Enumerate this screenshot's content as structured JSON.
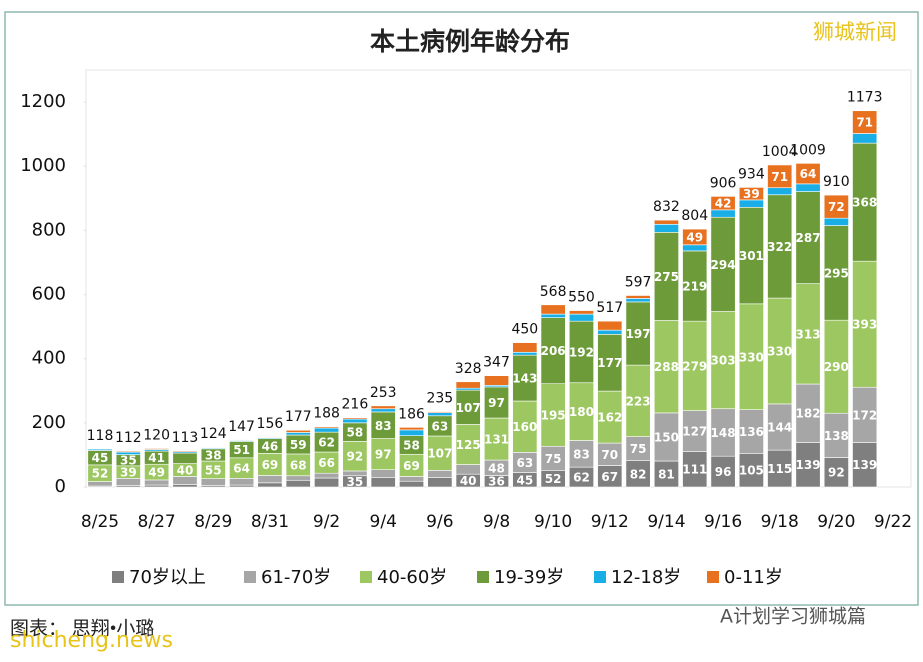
{
  "chart_data": {
    "type": "stacked_bar",
    "title": "本土病例年龄分布",
    "categories": [
      "8/25",
      null,
      "8/27",
      null,
      "8/29",
      null,
      "8/31",
      null,
      "9/2",
      null,
      "9/4",
      null,
      "9/6",
      null,
      "9/8",
      null,
      "9/10",
      null,
      "9/12",
      null,
      "9/14",
      null,
      "9/16",
      null,
      "9/18",
      null,
      "9/20",
      null,
      "9/22"
    ],
    "series": [
      {
        "name": "70岁以上",
        "color": "#7f7f7f",
        "values": [
          3,
          5,
          6,
          8,
          5,
          6,
          13,
          21,
          28,
          35,
          29,
          18,
          30,
          40,
          36,
          45,
          52,
          62,
          67,
          82,
          81,
          111,
          96,
          105,
          115,
          139,
          92,
          139,
          null
        ]
      },
      {
        "name": "61-70岁",
        "color": "#a6a6a6",
        "values": [
          14,
          22,
          16,
          25,
          21,
          21,
          23,
          14,
          15,
          15,
          25,
          15,
          22,
          30,
          48,
          63,
          75,
          83,
          70,
          75,
          150,
          127,
          148,
          136,
          144,
          182,
          138,
          172,
          null
        ]
      },
      {
        "name": "40-60岁",
        "color": "#9dc760",
        "values": [
          52,
          39,
          49,
          40,
          55,
          64,
          69,
          68,
          66,
          92,
          97,
          69,
          107,
          125,
          131,
          160,
          195,
          180,
          162,
          223,
          288,
          279,
          303,
          330,
          330,
          313,
          290,
          393,
          null
        ]
      },
      {
        "name": "19-39岁",
        "color": "#6d9b3a",
        "values": [
          45,
          35,
          41,
          33,
          38,
          51,
          46,
          59,
          62,
          58,
          83,
          58,
          63,
          107,
          97,
          143,
          206,
          192,
          177,
          197,
          275,
          219,
          294,
          301,
          322,
          287,
          295,
          368,
          null
        ]
      },
      {
        "name": "12-18岁",
        "color": "#1aaee6",
        "values": [
          4,
          8,
          5,
          4,
          3,
          3,
          3,
          8,
          13,
          12,
          10,
          18,
          10,
          6,
          5,
          9,
          11,
          22,
          13,
          11,
          25,
          19,
          23,
          23,
          22,
          24,
          23,
          30,
          null
        ]
      },
      {
        "name": "0-11岁",
        "color": "#e8711f",
        "values": [
          0,
          3,
          3,
          3,
          2,
          2,
          2,
          7,
          4,
          4,
          9,
          8,
          3,
          20,
          30,
          30,
          29,
          11,
          28,
          9,
          13,
          49,
          42,
          39,
          71,
          64,
          72,
          71,
          null
        ]
      }
    ],
    "totals": [
      118,
      112,
      120,
      113,
      124,
      147,
      156,
      177,
      188,
      216,
      253,
      186,
      235,
      328,
      347,
      450,
      568,
      550,
      517,
      597,
      832,
      804,
      906,
      934,
      1004,
      1009,
      910,
      1173,
      null
    ],
    "ylim": [
      0,
      1300
    ],
    "yticks": [
      0,
      200,
      400,
      600,
      800,
      1000,
      1200
    ],
    "legend": "bottom"
  },
  "watermark": "狮城新闻",
  "footer": {
    "credit": "图表： 思翔•小璐",
    "source": "A计划学习狮城篇",
    "site": "shicheng.news"
  }
}
